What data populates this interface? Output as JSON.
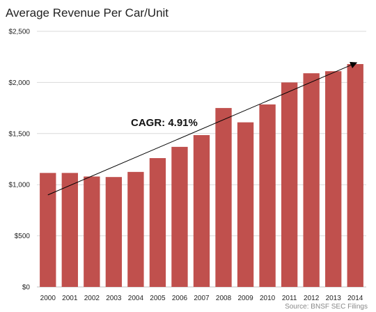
{
  "chart_data": {
    "type": "bar",
    "title": "Average Revenue Per Car/Unit",
    "xlabel": "",
    "ylabel": "",
    "categories": [
      "2000",
      "2001",
      "2002",
      "2003",
      "2004",
      "2005",
      "2006",
      "2007",
      "2008",
      "2009",
      "2010",
      "2011",
      "2012",
      "2013",
      "2014"
    ],
    "values": [
      1115,
      1115,
      1080,
      1075,
      1125,
      1260,
      1370,
      1485,
      1750,
      1610,
      1785,
      2000,
      2090,
      2110,
      2180
    ],
    "ylim": [
      0,
      2500
    ],
    "yticks": [
      0,
      500,
      1000,
      1500,
      2000,
      2500
    ],
    "ytick_labels": [
      "$0",
      "$500",
      "$1,000",
      "$1,500",
      "$2,000",
      "$2,500"
    ],
    "grid": true,
    "bar_color": "#c0504d",
    "grid_color": "#d9d9d9",
    "annotation": {
      "text": "CAGR: 4.91%",
      "arrow_from": {
        "x": "2000",
        "y": 900
      },
      "arrow_to": {
        "x": "2014",
        "y": 2180
      }
    },
    "source": "Source: BNSF SEC Filings"
  }
}
